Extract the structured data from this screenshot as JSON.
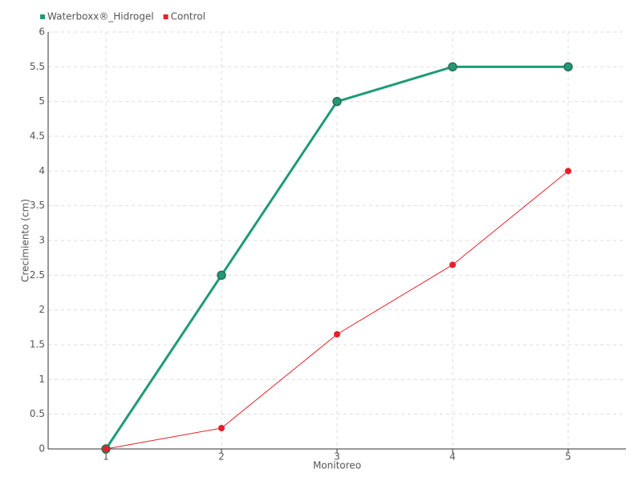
{
  "chart_data": {
    "type": "line",
    "x_label": "Monitoreo",
    "y_label": "Crecimiento (cm)",
    "categories": [
      "1",
      "2",
      "3",
      "4",
      "5"
    ],
    "series": [
      {
        "name": "Waterboxx®_Hidrogel",
        "color": "#1f9a78",
        "values": [
          0,
          2.5,
          5,
          5.5,
          5.5
        ]
      },
      {
        "name": "Control",
        "color": "#e5202a",
        "values": [
          0,
          0.3,
          1.65,
          2.65,
          4
        ]
      }
    ],
    "ylim": [
      0,
      6
    ],
    "yticks": [
      0,
      0.5,
      1,
      1.5,
      2,
      2.5,
      3,
      3.5,
      4,
      4.5,
      5,
      5.5,
      6
    ],
    "grid": true,
    "legend": "top-left"
  }
}
